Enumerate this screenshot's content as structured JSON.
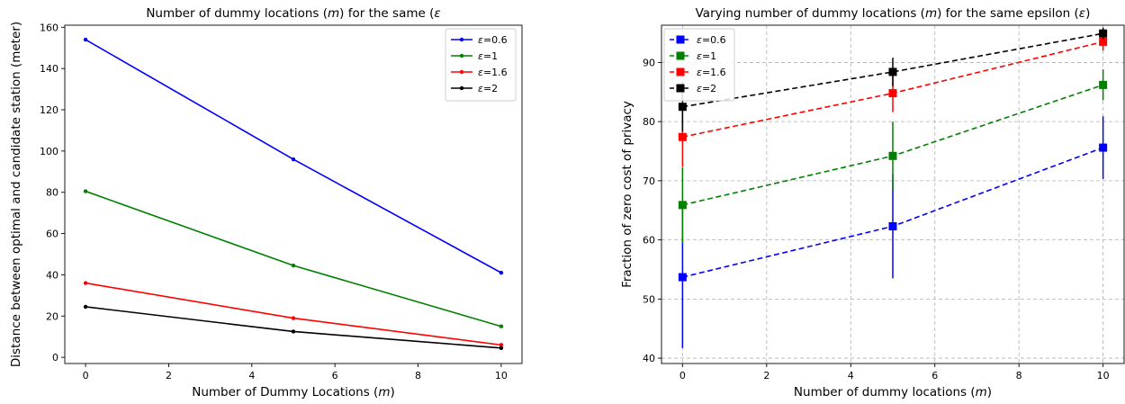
{
  "chart_data": [
    {
      "type": "line",
      "title": "Number of dummy locations (m) for the same (ε",
      "title_parts": [
        {
          "text": "Number of dummy locations (",
          "italic": false
        },
        {
          "text": "m",
          "italic": true
        },
        {
          "text": ") for the same (",
          "italic": false
        },
        {
          "text": "ε",
          "italic": true
        }
      ],
      "xlabel": "Number of Dummy Locations (m)",
      "xlabel_parts": [
        {
          "text": "Number of Dummy Locations (",
          "italic": false
        },
        {
          "text": "m",
          "italic": true
        },
        {
          "text": ")",
          "italic": false
        }
      ],
      "ylabel": "Distance between optimal and candidate station (meter)",
      "xlim": [
        -0.5,
        10.5
      ],
      "ylim": [
        -3,
        161
      ],
      "xticks": [
        0,
        2,
        4,
        6,
        8,
        10
      ],
      "yticks": [
        0,
        20,
        40,
        60,
        80,
        100,
        120,
        140,
        160
      ],
      "grid": false,
      "legend_position": "top-right",
      "x": [
        0,
        5,
        10
      ],
      "series": [
        {
          "name": "ε=0.6",
          "label_parts": [
            {
              "text": "ε",
              "italic": true
            },
            {
              "text": "=0.6",
              "italic": false
            }
          ],
          "color": "#0000ff",
          "values": [
            154,
            96,
            41
          ]
        },
        {
          "name": "ε=1",
          "label_parts": [
            {
              "text": "ε",
              "italic": true
            },
            {
              "text": "=1",
              "italic": false
            }
          ],
          "color": "#008000",
          "values": [
            80.5,
            44.5,
            15
          ]
        },
        {
          "name": "ε=1.6",
          "label_parts": [
            {
              "text": "ε",
              "italic": true
            },
            {
              "text": "=1.6",
              "italic": false
            }
          ],
          "color": "#ff0000",
          "values": [
            36,
            19,
            6
          ]
        },
        {
          "name": "ε=2",
          "label_parts": [
            {
              "text": "ε",
              "italic": true
            },
            {
              "text": "=2",
              "italic": false
            }
          ],
          "color": "#000000",
          "values": [
            24.5,
            12.5,
            4.5
          ]
        }
      ]
    },
    {
      "type": "line",
      "title": "Varying number of dummy locations (m) for the same epsilon (ε)",
      "title_parts": [
        {
          "text": "Varying number of dummy locations (",
          "italic": false
        },
        {
          "text": "m",
          "italic": true
        },
        {
          "text": ") for the same epsilon (",
          "italic": false
        },
        {
          "text": "ε",
          "italic": true
        },
        {
          "text": ")",
          "italic": false
        }
      ],
      "xlabel": "Number of dummy locations (m)",
      "xlabel_parts": [
        {
          "text": "Number of dummy locations (",
          "italic": false
        },
        {
          "text": "m",
          "italic": true
        },
        {
          "text": ")",
          "italic": false
        }
      ],
      "ylabel": "Fraction of zero cost of privacy",
      "xlim": [
        -0.5,
        10.5
      ],
      "ylim": [
        39.1,
        96.3
      ],
      "xticks": [
        0,
        2,
        4,
        6,
        8,
        10
      ],
      "yticks": [
        40,
        50,
        60,
        70,
        80,
        90
      ],
      "grid": true,
      "error_bars": true,
      "legend_position": "top-left",
      "x": [
        0,
        5,
        10
      ],
      "series": [
        {
          "name": "ε=0.6",
          "label_parts": [
            {
              "text": "ε",
              "italic": true
            },
            {
              "text": "=0.6",
              "italic": false
            }
          ],
          "color": "#0000ff",
          "values": [
            53.7,
            62.3,
            75.6
          ],
          "errors": [
            12,
            8.8,
            5.3
          ]
        },
        {
          "name": "ε=1",
          "label_parts": [
            {
              "text": "ε",
              "italic": true
            },
            {
              "text": "=1",
              "italic": false
            }
          ],
          "color": "#008000",
          "values": [
            65.9,
            74.2,
            86.2
          ],
          "errors": [
            6.4,
            5.8,
            2.6
          ]
        },
        {
          "name": "ε=1.6",
          "label_parts": [
            {
              "text": "ε",
              "italic": true
            },
            {
              "text": "=1.6",
              "italic": false
            }
          ],
          "color": "#ff0000",
          "values": [
            77.4,
            84.8,
            93.5
          ],
          "errors": [
            5,
            3.2,
            1.5
          ]
        },
        {
          "name": "ε=2",
          "label_parts": [
            {
              "text": "ε",
              "italic": true
            },
            {
              "text": "=2",
              "italic": false
            }
          ],
          "color": "#000000",
          "values": [
            82.5,
            88.4,
            94.9
          ],
          "errors": [
            4.2,
            2.4,
            1
          ]
        }
      ]
    }
  ]
}
